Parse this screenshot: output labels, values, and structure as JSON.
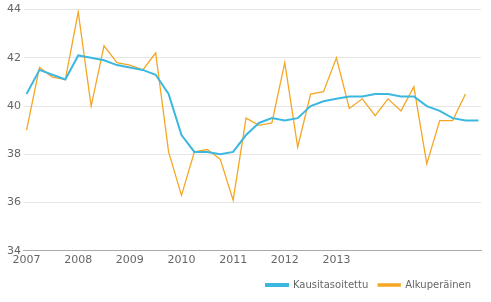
{
  "chart_data": {
    "type": "line",
    "x": [
      2007,
      2007.25,
      2007.5,
      2007.75,
      2008,
      2008.25,
      2008.5,
      2008.75,
      2009,
      2009.25,
      2009.5,
      2009.75,
      2010,
      2010.25,
      2010.5,
      2010.75,
      2011,
      2011.25,
      2011.5,
      2011.75,
      2012,
      2012.25,
      2012.5,
      2012.75,
      2013,
      2013.25,
      2013.5,
      2013.75,
      2014,
      2014.25,
      2014.5,
      2014.75,
      2015,
      2015.25,
      2015.5,
      2015.75
    ],
    "series": [
      {
        "name": "Alkuperäinen",
        "color": "#f5a623",
        "values": [
          39.0,
          41.6,
          41.2,
          41.1,
          43.9,
          40.0,
          42.5,
          41.8,
          41.7,
          41.5,
          42.2,
          38.1,
          36.3,
          38.1,
          38.2,
          37.8,
          36.1,
          39.5,
          39.2,
          39.3,
          41.8,
          38.3,
          40.5,
          40.6,
          42.0,
          39.9,
          40.3,
          39.6,
          40.3,
          39.8,
          40.8,
          37.6,
          39.4,
          39.4,
          40.5,
          null
        ]
      },
      {
        "name": "Kausitasoitettu",
        "color": "#3cb8e0",
        "values": [
          40.5,
          41.5,
          41.3,
          41.1,
          42.1,
          42.0,
          41.9,
          41.7,
          41.6,
          41.5,
          41.3,
          40.5,
          38.8,
          38.1,
          38.1,
          38.0,
          38.1,
          38.8,
          39.3,
          39.5,
          39.4,
          39.5,
          40.0,
          40.2,
          40.3,
          40.4,
          40.4,
          40.5,
          40.5,
          40.4,
          40.4,
          40.0,
          39.8,
          39.5,
          39.4,
          39.4
        ]
      }
    ],
    "xlim": [
      2006.95,
      2015.8
    ],
    "xticks": [
      2007,
      2008,
      2009,
      2010,
      2011,
      2012,
      2013
    ],
    "ylim": [
      34,
      44
    ],
    "yticks": [
      34,
      36,
      38,
      40,
      42,
      44
    ],
    "grid": "y",
    "legend": "lower right"
  }
}
